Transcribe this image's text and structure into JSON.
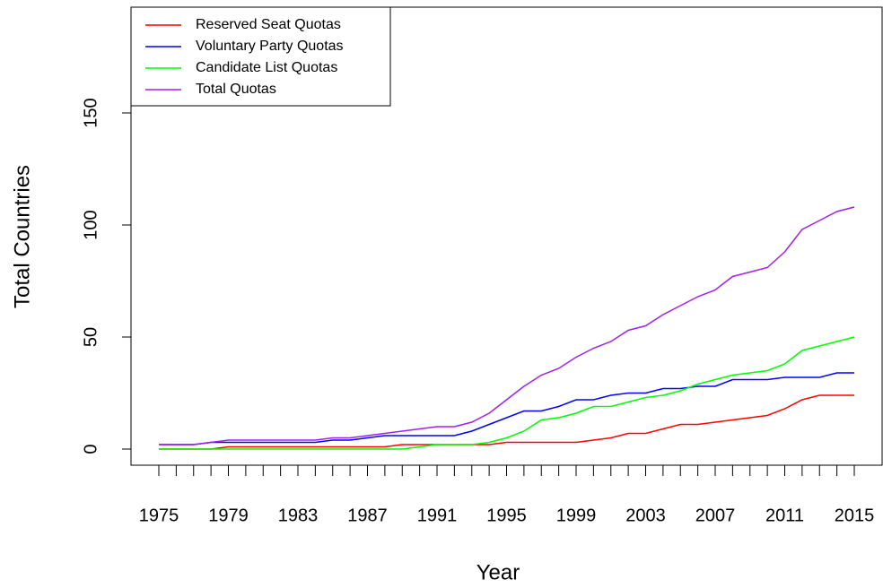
{
  "chart_data": {
    "type": "line",
    "x_label": "Year",
    "y_label": "Total Countries",
    "x": [
      1975,
      1976,
      1977,
      1978,
      1979,
      1980,
      1981,
      1982,
      1983,
      1984,
      1985,
      1986,
      1987,
      1988,
      1989,
      1990,
      1991,
      1992,
      1993,
      1994,
      1995,
      1996,
      1997,
      1998,
      1999,
      2000,
      2001,
      2002,
      2003,
      2004,
      2005,
      2006,
      2007,
      2008,
      2009,
      2010,
      2011,
      2012,
      2013,
      2014,
      2015
    ],
    "series": [
      {
        "name": "Reserved Seat Quotas",
        "color": "#ff0000",
        "values": [
          0,
          0,
          0,
          0,
          1,
          1,
          1,
          1,
          1,
          1,
          1,
          1,
          1,
          1,
          2,
          2,
          2,
          2,
          2,
          2,
          3,
          3,
          3,
          3,
          3,
          4,
          5,
          7,
          7,
          9,
          11,
          11,
          12,
          13,
          14,
          15,
          18,
          22,
          24,
          24,
          24
        ]
      },
      {
        "name": "Voluntary Party Quotas",
        "color": "#0000ff",
        "values": [
          2,
          2,
          2,
          3,
          3,
          3,
          3,
          3,
          3,
          3,
          4,
          4,
          5,
          6,
          6,
          6,
          6,
          6,
          8,
          11,
          14,
          17,
          17,
          19,
          22,
          22,
          24,
          25,
          25,
          27,
          27,
          28,
          28,
          31,
          31,
          31,
          32,
          32,
          32,
          34,
          34
        ]
      },
      {
        "name": "Candidate List Quotas",
        "color": "#00ff00",
        "values": [
          0,
          0,
          0,
          0,
          0,
          0,
          0,
          0,
          0,
          0,
          0,
          0,
          0,
          0,
          0,
          1,
          2,
          2,
          2,
          3,
          5,
          8,
          13,
          14,
          16,
          19,
          19,
          21,
          23,
          24,
          26,
          29,
          31,
          33,
          34,
          35,
          38,
          44,
          46,
          48,
          50
        ]
      },
      {
        "name": "Total Quotas",
        "color": "#a020f0",
        "values": [
          2,
          2,
          2,
          3,
          4,
          4,
          4,
          4,
          4,
          4,
          5,
          5,
          6,
          7,
          8,
          9,
          10,
          10,
          12,
          16,
          22,
          28,
          33,
          36,
          41,
          45,
          48,
          53,
          55,
          60,
          64,
          68,
          71,
          77,
          79,
          81,
          88,
          98,
          102,
          106,
          108
        ]
      }
    ],
    "xlim": [
      1973.4,
      2016.6
    ],
    "xticks": [
      1975,
      1979,
      1983,
      1987,
      1991,
      1995,
      1999,
      2003,
      2007,
      2011,
      2015
    ],
    "xminorticks": [
      1975,
      1976,
      1977,
      1978,
      1979,
      1980,
      1981,
      1982,
      1983,
      1984,
      1985,
      1986,
      1987,
      1988,
      1989,
      1990,
      1991,
      1992,
      1993,
      1994,
      1995,
      1996,
      1997,
      1998,
      1999,
      2000,
      2001,
      2002,
      2003,
      2004,
      2005,
      2006,
      2007,
      2008,
      2009,
      2010,
      2011,
      2012,
      2013,
      2014,
      2015
    ],
    "ylim": [
      -7.2,
      197.2
    ],
    "yticks": [
      0,
      50,
      100,
      150
    ],
    "legend": "topleft"
  }
}
